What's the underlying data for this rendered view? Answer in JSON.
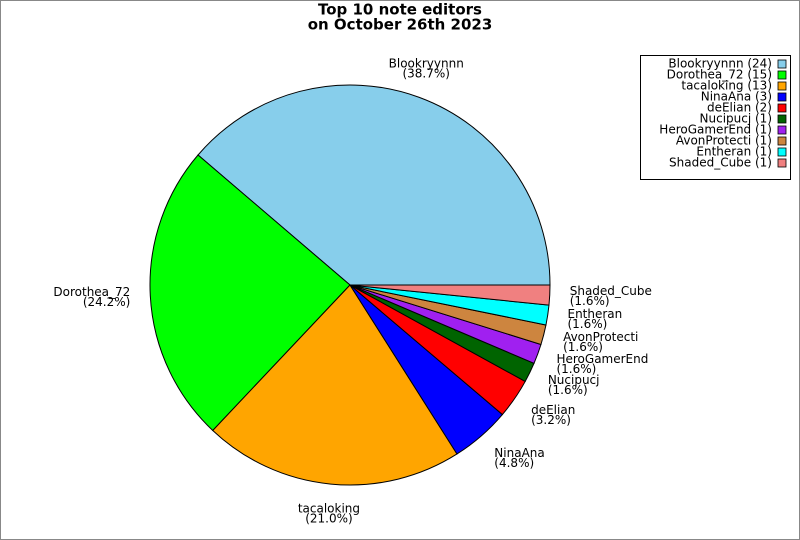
{
  "chart_data": {
    "type": "pie",
    "title": [
      "Top 10 note editors",
      "on October 26th 2023"
    ],
    "categories": [
      "Blookryynnn",
      "Dorothea_72",
      "tacaloking",
      "NinaAna",
      "deElian",
      "Nucipucj",
      "HeroGamerEnd",
      "AvonProtecti",
      "Entheran",
      "Shaded_Cube"
    ],
    "values": [
      38.7,
      24.2,
      21.0,
      4.8,
      3.2,
      1.6,
      1.6,
      1.6,
      1.6,
      1.6
    ],
    "value_labels": [
      "(38.7%)",
      "(24.2%)",
      "(21.0%)",
      "(4.8%)",
      "(3.2%)",
      "(1.6%)",
      "(1.6%)",
      "(1.6%)",
      "(1.6%)",
      "(1.6%)"
    ],
    "colors": [
      "#87ceeb",
      "#00ff00",
      "#ffa500",
      "#0000ff",
      "#ff0000",
      "#006400",
      "#a020f0",
      "#cd853f",
      "#00ffff",
      "#f08080"
    ],
    "legend_labels": [
      "Blookryynnn (24)",
      "Dorothea_72 (15)",
      "tacaloking (13)",
      "NinaAna (3)",
      "deElian (2)",
      "Nucipucj (1)",
      "HeroGamerEnd (1)",
      "AvonProtecti (1)",
      "Entheran (1)",
      "Shaded_Cube (1)"
    ],
    "legend": "upper right"
  }
}
